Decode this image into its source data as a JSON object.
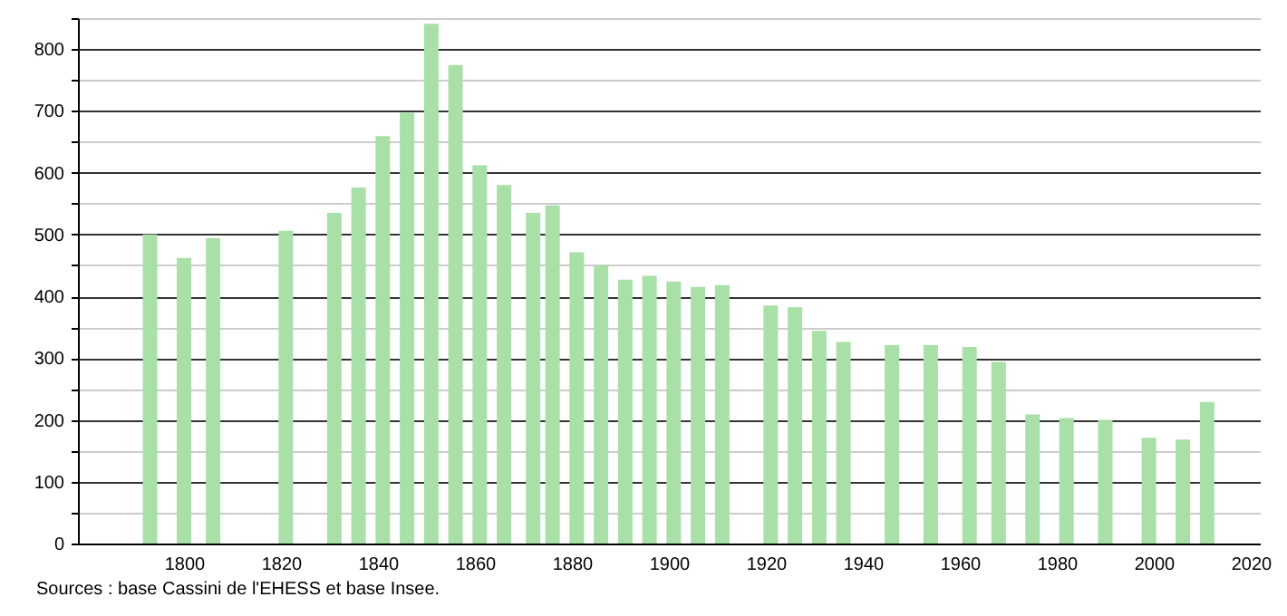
{
  "chart_data": {
    "type": "bar",
    "x": [
      1793,
      1800,
      1806,
      1821,
      1831,
      1836,
      1841,
      1846,
      1851,
      1856,
      1861,
      1866,
      1872,
      1876,
      1881,
      1886,
      1891,
      1896,
      1901,
      1906,
      1911,
      1921,
      1926,
      1931,
      1936,
      1946,
      1954,
      1962,
      1968,
      1975,
      1982,
      1990,
      1999,
      2006,
      2011
    ],
    "values": [
      500,
      462,
      494,
      506,
      535,
      576,
      659,
      697,
      841,
      774,
      612,
      580,
      535,
      547,
      471,
      450,
      427,
      433,
      424,
      415,
      418,
      385,
      382,
      344,
      326,
      321,
      321,
      318,
      294,
      209,
      203,
      200,
      171,
      168,
      229
    ],
    "color": "#a8e0a8",
    "xlim": [
      1780,
      2020
    ],
    "xticks": [
      1800,
      1820,
      1840,
      1860,
      1880,
      1900,
      1920,
      1940,
      1960,
      1980,
      2000,
      2020
    ],
    "ylim": [
      0,
      850
    ],
    "yticks": [
      0,
      {
        "value": 50,
        "label": null
      },
      100,
      {
        "value": 150,
        "label": null
      },
      200,
      {
        "value": 250,
        "label": null
      },
      300,
      {
        "value": 350,
        "label": null
      },
      400,
      {
        "value": 450,
        "label": null
      },
      500,
      {
        "value": 550,
        "label": null
      },
      600,
      {
        "value": 650,
        "label": null
      },
      700,
      {
        "value": 750,
        "label": null
      },
      800,
      {
        "value": 850,
        "label": null
      }
    ],
    "grid": "y",
    "annotations": [
      "Sources : base Cassini de l'EHESS et base Insee."
    ]
  }
}
